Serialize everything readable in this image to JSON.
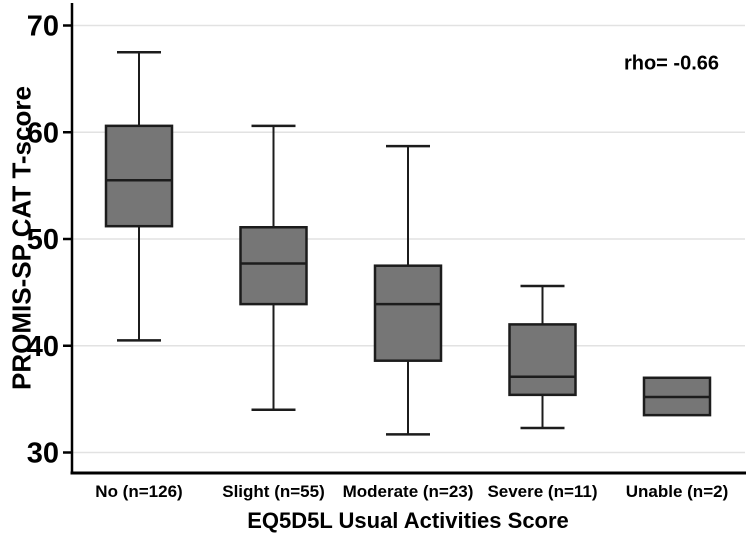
{
  "chart_data": {
    "type": "box",
    "title": "",
    "xlabel": "EQ5D5L Usual Activities Score",
    "ylabel": "PROMIS-SP CAT T-score",
    "annotation": "rho= -0.66",
    "ylim": [
      28,
      72
    ],
    "yticks": [
      30,
      40,
      50,
      60,
      70
    ],
    "grid": "horizontal",
    "categories": [
      "No (n=126)",
      "Slight (n=55)",
      "Moderate (n=23)",
      "Severe (n=11)",
      "Unable (n=2)"
    ],
    "n_values": [
      126,
      55,
      23,
      11,
      2
    ],
    "boxes": [
      {
        "label": "No (n=126)",
        "whisker_low": 40.5,
        "q1": 51.2,
        "median": 55.5,
        "q3": 60.6,
        "whisker_high": 67.5
      },
      {
        "label": "Slight (n=55)",
        "whisker_low": 34.0,
        "q1": 43.9,
        "median": 47.7,
        "q3": 51.1,
        "whisker_high": 60.6
      },
      {
        "label": "Moderate (n=23)",
        "whisker_low": 31.7,
        "q1": 38.6,
        "median": 43.9,
        "q3": 47.5,
        "whisker_high": 58.7
      },
      {
        "label": "Severe (n=11)",
        "whisker_low": 32.3,
        "q1": 35.4,
        "median": 37.1,
        "q3": 42.0,
        "whisker_high": 45.6
      },
      {
        "label": "Unable (n=2)",
        "whisker_low": null,
        "q1": 33.5,
        "median": 35.2,
        "q3": 37.0,
        "whisker_high": null
      }
    ],
    "colors": {
      "box_fill": "#767676",
      "box_border": "#1c1c1c",
      "median_line": "#1c1c1c",
      "whisker": "#1c1c1c",
      "gridline": "#e2e2e2",
      "axis": "#000000",
      "text": "#000000",
      "background": "#ffffff"
    }
  }
}
